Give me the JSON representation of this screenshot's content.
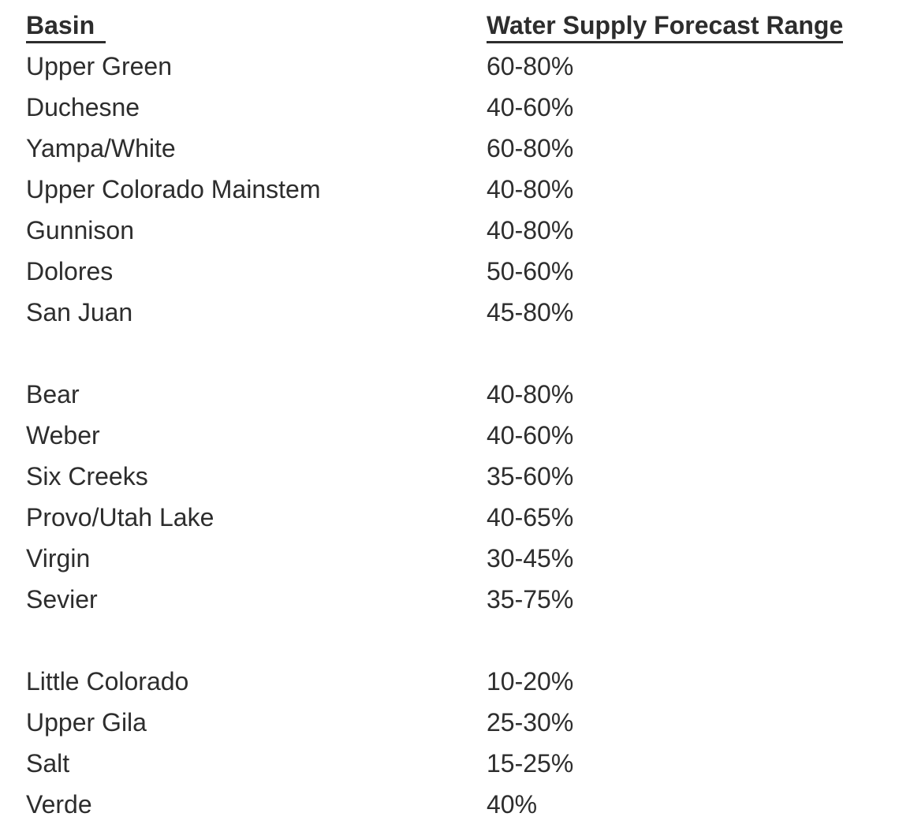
{
  "colors": {
    "text": "#2d2d2d",
    "background": "#ffffff"
  },
  "table": {
    "columns": [
      {
        "key": "basin",
        "label": "Basin"
      },
      {
        "key": "range",
        "label": "Water Supply Forecast Range"
      }
    ],
    "groups": [
      {
        "rows": [
          {
            "basin": "Upper Green",
            "range": "60-80%"
          },
          {
            "basin": "Duchesne",
            "range": "40-60%"
          },
          {
            "basin": "Yampa/White",
            "range": "60-80%"
          },
          {
            "basin": "Upper Colorado Mainstem",
            "range": "40-80%"
          },
          {
            "basin": "Gunnison",
            "range": "40-80%"
          },
          {
            "basin": "Dolores",
            "range": "50-60%"
          },
          {
            "basin": "San Juan",
            "range": "45-80%"
          }
        ]
      },
      {
        "rows": [
          {
            "basin": "Bear",
            "range": "40-80%"
          },
          {
            "basin": "Weber",
            "range": "40-60%"
          },
          {
            "basin": "Six Creeks",
            "range": "35-60%"
          },
          {
            "basin": "Provo/Utah Lake",
            "range": "40-65%"
          },
          {
            "basin": "Virgin",
            "range": "30-45%"
          },
          {
            "basin": "Sevier",
            "range": "35-75%"
          }
        ]
      },
      {
        "rows": [
          {
            "basin": "Little Colorado",
            "range": "10-20%"
          },
          {
            "basin": "Upper Gila",
            "range": "25-30%"
          },
          {
            "basin": "Salt",
            "range": "15-25%"
          },
          {
            "basin": "Verde",
            "range": "40%"
          }
        ]
      }
    ]
  }
}
